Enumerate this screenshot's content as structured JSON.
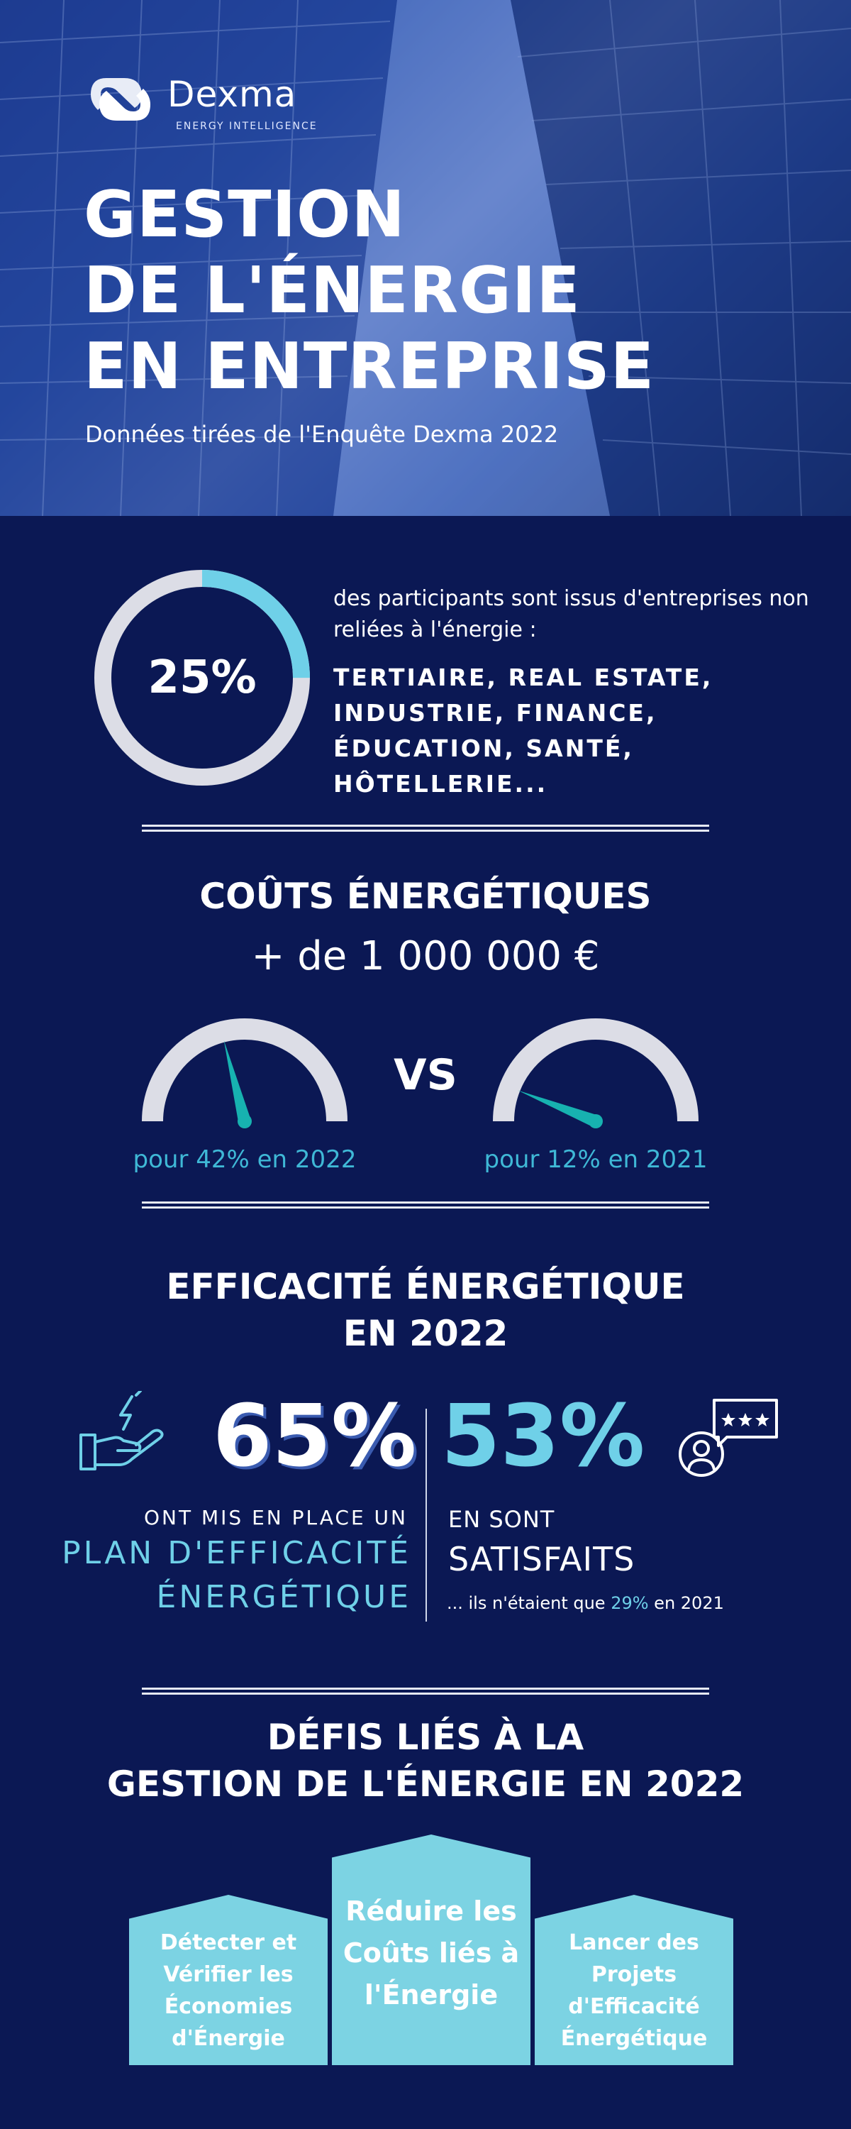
{
  "brand": {
    "name": "Dexma",
    "tagline": "ENERGY INTELLIGENCE"
  },
  "hero": {
    "title_lines": [
      "GESTION",
      "DE L'ÉNERGIE",
      "EN ENTREPRISE"
    ],
    "subtitle": "Données tirées de l'Enquête Dexma 2022"
  },
  "participants": {
    "percent_label": "25%",
    "percent_value": 25,
    "text": "des participants sont issus d'entreprises non reliées à l'énergie :",
    "sectors": "TERTIAIRE, REAL ESTATE, INDUSTRIE, FINANCE, ÉDUCATION, SANTÉ, HÔTELLERIE..."
  },
  "costs": {
    "title": "COÛTS ÉNERGÉTIQUES",
    "amount": "+ de 1 000 000 €",
    "vs": "VS",
    "gauge_2022": {
      "caption": "pour 42% en 2022",
      "value_percent": 42
    },
    "gauge_2021": {
      "caption": "pour 12% en 2021",
      "value_percent": 12
    }
  },
  "efficiency": {
    "title_lines": [
      "EFFICACITÉ ÉNERGÉTIQUE",
      "EN 2022"
    ],
    "left": {
      "value": "65%",
      "caption": "ONT MIS EN PLACE UN",
      "highlight_lines": [
        "PLAN D'EFFICACITÉ",
        "ÉNERGÉTIQUE"
      ]
    },
    "right": {
      "value": "53%",
      "caption_line1": "EN SONT",
      "caption_line2": "SATISFAITS",
      "note_prefix": "... ils n'étaient que ",
      "note_highlight": "29%",
      "note_suffix": " en 2021"
    }
  },
  "challenges": {
    "title_lines": [
      "DÉFIS LIÉS À LA",
      "GESTION DE L'ÉNERGIE EN 2022"
    ],
    "items": [
      "Détecter et Vérifier les Économies d'Énergie",
      "Réduire les Coûts liés à l'Énergie",
      "Lancer des Projets d'Efficacité Énergétique"
    ]
  },
  "colors": {
    "background": "#0b1854",
    "accent": "#6fd0e8",
    "gauge_needle": "#17b2b0",
    "gauge_track": "#dcdde6",
    "caption_blue": "#3fb8d6",
    "house": "#7cd3e3"
  },
  "icons": {
    "logo": "dexma-logo-icon",
    "efficiency_left": "hand-lightning-icon",
    "efficiency_right": "user-review-stars-icon"
  }
}
